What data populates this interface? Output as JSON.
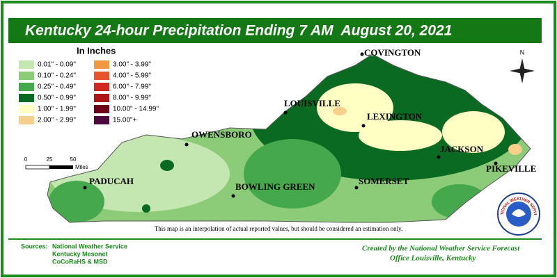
{
  "header": {
    "title": "Kentucky 24-hour Precipitation Ending 7 AM  August 20, 2021"
  },
  "legend": {
    "title": "In Inches",
    "items": [
      {
        "label": "0.01\" - 0.09\"",
        "color": "#c4e6b0"
      },
      {
        "label": "0.10\" - 0.24\"",
        "color": "#8ccc78"
      },
      {
        "label": "0.25\" - 0.49\"",
        "color": "#46a84c"
      },
      {
        "label": "0.50\" - 0.99\"",
        "color": "#0b6a22"
      },
      {
        "label": "1.00\" - 1.99\"",
        "color": "#ffffc4"
      },
      {
        "label": "2.00\" - 2.99\"",
        "color": "#f6d08a"
      },
      {
        "label": "3.00\" - 3.99\"",
        "color": "#f29840"
      },
      {
        "label": "4.00\" - 5.99\"",
        "color": "#e8552a"
      },
      {
        "label": "6.00\" - 7.99\"",
        "color": "#d02820"
      },
      {
        "label": "8.00\" - 9.99\"",
        "color": "#ac1616"
      },
      {
        "label": "10.00\" - 14.99\"",
        "color": "#6c0018"
      },
      {
        "label": "15.00\"+",
        "color": "#4a0a3c"
      }
    ]
  },
  "cities": [
    {
      "label": "COVINGTON"
    },
    {
      "label": "LOUISVILLE"
    },
    {
      "label": "LEXINGTON"
    },
    {
      "label": "OWENSBORO"
    },
    {
      "label": "JACKSON"
    },
    {
      "label": "PIKEVILLE"
    },
    {
      "label": "PADUCAH"
    },
    {
      "label": "BOWLING GREEN"
    },
    {
      "label": "SOMERSET"
    }
  ],
  "scale": {
    "ticks": [
      "0",
      "25",
      "50"
    ],
    "unit": "Miles"
  },
  "compass": "N",
  "logo": "NATIONAL WEATHER SERVICE",
  "note": "This map is an interpolation of actual reported values, but should be considered an estimation only.",
  "sources": {
    "label": "Sources:",
    "lines": [
      "National Weather Service",
      "Kentucky Mesonet",
      "CoCoRaHS & MSD"
    ]
  },
  "credit": [
    "Created by the National Weather Service Forecast",
    "Office Louisville, Kentucky"
  ]
}
